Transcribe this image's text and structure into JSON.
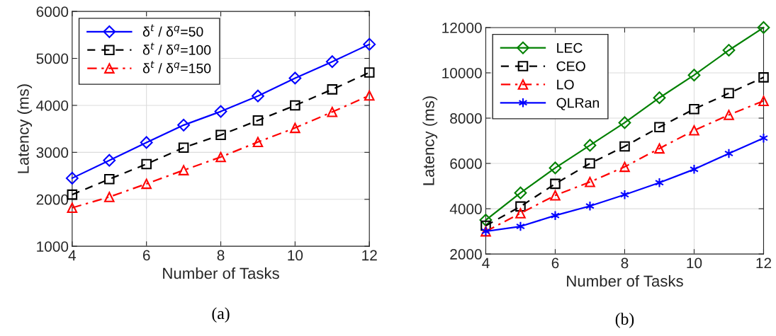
{
  "chart_data": [
    {
      "type": "line",
      "x": [
        4,
        5,
        6,
        7,
        8,
        9,
        10,
        11,
        12
      ],
      "xlabel": "Number of Tasks",
      "ylabel": "Latency (ms)",
      "xlim": [
        4,
        12
      ],
      "xticks": [
        4,
        6,
        8,
        10,
        12
      ],
      "ylim": [
        1000,
        6000
      ],
      "yticks": [
        1000,
        2000,
        3000,
        4000,
        5000,
        6000
      ],
      "grid": true,
      "legend": "top left",
      "annotations": [
        "(a)"
      ],
      "series": [
        {
          "name": "δ$^{t}$ / δ$^{q}$=50",
          "color": "#0000ff",
          "marker": "diamond",
          "line_style": "solid",
          "values": [
            2450,
            2830,
            3210,
            3580,
            3870,
            4200,
            4580,
            4930,
            5300
          ]
        },
        {
          "name": "δ$^{t}$ / δ$^{q}$=100",
          "color": "#000000",
          "marker": "square",
          "line_style": "dashed",
          "values": [
            2100,
            2430,
            2750,
            3100,
            3370,
            3680,
            4000,
            4340,
            4700
          ]
        },
        {
          "name": "δ$^{t}$ / δ$^{q}$=150",
          "color": "#ff0000",
          "marker": "triangle",
          "line_style": "dashdot",
          "values": [
            1820,
            2050,
            2330,
            2620,
            2900,
            3220,
            3520,
            3860,
            4210
          ]
        }
      ]
    },
    {
      "type": "line",
      "x": [
        4,
        5,
        6,
        7,
        8,
        9,
        10,
        11,
        12
      ],
      "xlabel": "Number of Tasks",
      "ylabel": "Latency (ms)",
      "xlim": [
        4,
        12
      ],
      "xticks": [
        4,
        6,
        8,
        10,
        12
      ],
      "ylim": [
        2000,
        12000
      ],
      "yticks": [
        2000,
        4000,
        6000,
        8000,
        10000,
        12000
      ],
      "grid": true,
      "legend": "top left",
      "annotations": [
        "(b)"
      ],
      "series": [
        {
          "name": "LEC",
          "color": "#008000",
          "marker": "diamond",
          "line_style": "solid",
          "values": [
            3500,
            4700,
            5800,
            6800,
            7800,
            8900,
            9900,
            11000,
            12000
          ]
        },
        {
          "name": "CEO",
          "color": "#000000",
          "marker": "square",
          "line_style": "dashed",
          "values": [
            3250,
            4100,
            5100,
            6000,
            6750,
            7600,
            8400,
            9100,
            9800
          ]
        },
        {
          "name": "LO",
          "color": "#ff0000",
          "marker": "triangle",
          "line_style": "dashdot",
          "values": [
            3000,
            3800,
            4590,
            5180,
            5850,
            6660,
            7460,
            8140,
            8760
          ]
        },
        {
          "name": "QLRan",
          "color": "#0000ff",
          "marker": "cross",
          "line_style": "solid",
          "values": [
            3000,
            3220,
            3700,
            4120,
            4620,
            5150,
            5740,
            6440,
            7120
          ]
        }
      ]
    }
  ]
}
